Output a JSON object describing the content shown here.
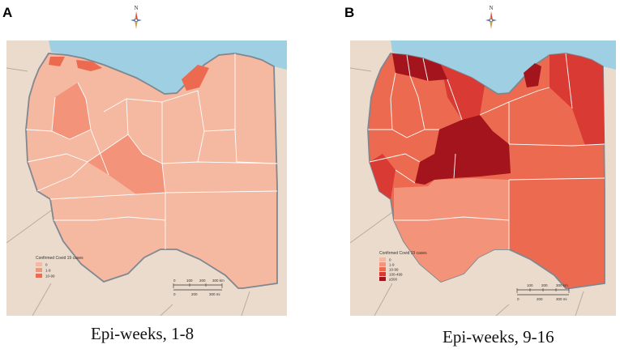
{
  "panels": [
    {
      "letter": "A",
      "north_label": "N",
      "caption": "Epi-weeks, 1-8",
      "legend": {
        "title": "Confirmed Covid 19 cases",
        "classes": [
          {
            "label": "0",
            "color": "#f5b8a0"
          },
          {
            "label": "1-9",
            "color": "#f2937a"
          },
          {
            "label": "10-99",
            "color": "#ec6a4f"
          }
        ]
      },
      "scale_km": [
        "0",
        "100",
        "200",
        "300 km"
      ],
      "scale_mi": [
        "0",
        "200",
        "300 mi"
      ]
    },
    {
      "letter": "B",
      "north_label": "N",
      "caption": "Epi-weeks, 9-16",
      "legend": {
        "title": "Confirmed Covid 19 cases",
        "classes": [
          {
            "label": "0",
            "color": "#f5b8a0"
          },
          {
            "label": "1-9",
            "color": "#f2937a"
          },
          {
            "label": "10-99",
            "color": "#ec6a4f"
          },
          {
            "label": "100-499",
            "color": "#d93a33"
          },
          {
            "label": "≥500",
            "color": "#a3141c"
          }
        ]
      },
      "scale_km": [
        "100",
        "200",
        "300 km"
      ],
      "scale_mi": [
        "0",
        "200",
        "300 mi"
      ]
    }
  ],
  "colors": {
    "sea": "#9ecfe2",
    "land_outside": "#eadbcc",
    "border": "#b8aca0",
    "country_outline": "#7f8790",
    "district_line": "#ffffff"
  }
}
